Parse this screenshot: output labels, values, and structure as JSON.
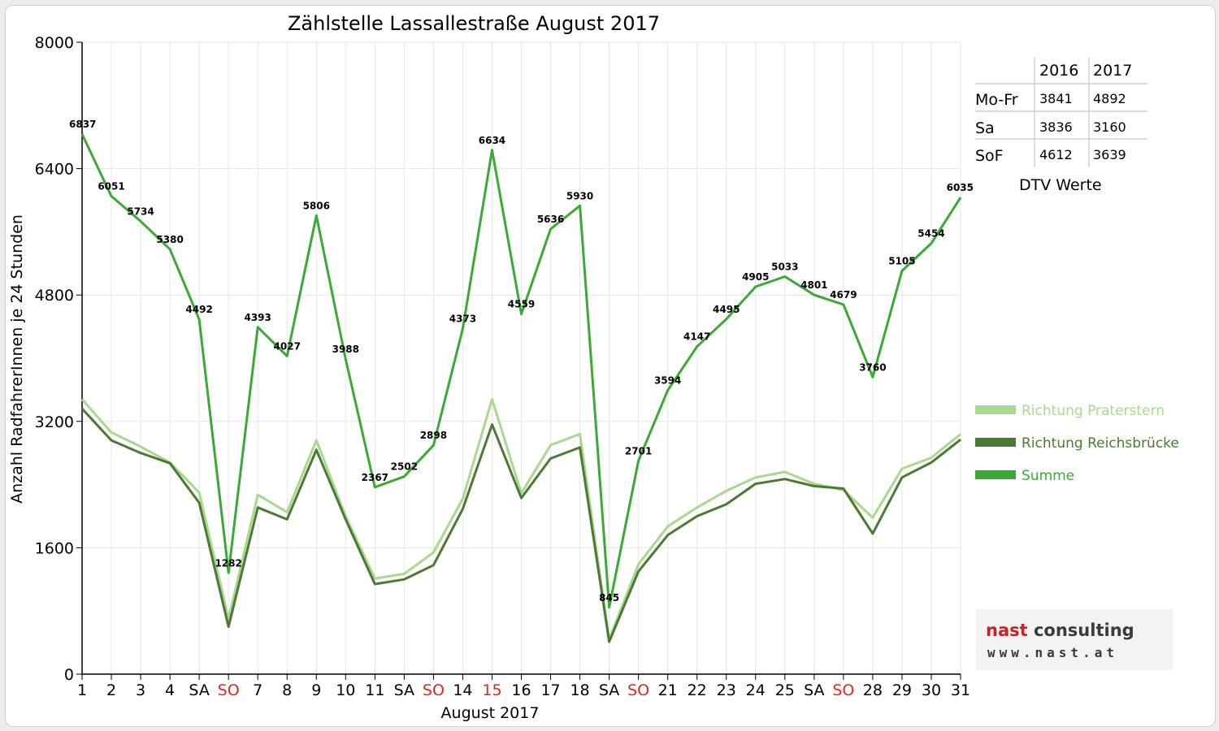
{
  "chart_data": {
    "type": "line",
    "title": "Zählstelle Lassallestraße August 2017",
    "xlabel": "August 2017",
    "ylabel": "Anzahl RadfahrerInnen je 24 Stunden",
    "ylim": [
      0,
      8000
    ],
    "yticks": [
      0,
      1600,
      3200,
      4800,
      6400,
      8000
    ],
    "grid": true,
    "legend_position": "right",
    "x": [
      1,
      2,
      3,
      4,
      5,
      6,
      7,
      8,
      9,
      10,
      11,
      12,
      13,
      14,
      15,
      16,
      17,
      18,
      19,
      20,
      21,
      22,
      23,
      24,
      25,
      26,
      27,
      28,
      29,
      30,
      31
    ],
    "tick_labels": [
      "1",
      "2",
      "3",
      "4",
      "SA",
      "SO",
      "7",
      "8",
      "9",
      "10",
      "11",
      "SA",
      "SO",
      "14",
      "15",
      "16",
      "17",
      "18",
      "SA",
      "SO",
      "21",
      "22",
      "23",
      "24",
      "25",
      "SA",
      "SO",
      "28",
      "29",
      "30",
      "31"
    ],
    "highlight_ticks": [
      "SO",
      "15"
    ],
    "highlight_color": "#e8231c",
    "series": [
      {
        "name": "Richtung Praterstern",
        "color": "#a8d98e",
        "values": [
          3480,
          3060,
          2880,
          2680,
          2300,
          700,
          2270,
          2050,
          2960,
          2000,
          1210,
          1270,
          1540,
          2220,
          3480,
          2290,
          2900,
          3040,
          440,
          1390,
          1870,
          2110,
          2320,
          2490,
          2560,
          2410,
          2330,
          1980,
          2600,
          2740,
          3040
        ]
      },
      {
        "name": "Richtung Reichsbrücke",
        "color": "#4a7a33",
        "values": [
          3360,
          2960,
          2800,
          2670,
          2170,
          600,
          2110,
          1960,
          2840,
          1960,
          1140,
          1200,
          1380,
          2090,
          3160,
          2230,
          2730,
          2870,
          410,
          1300,
          1760,
          2000,
          2150,
          2410,
          2470,
          2380,
          2350,
          1780,
          2490,
          2680,
          2970
        ]
      },
      {
        "name": "Summe",
        "color": "#3aaa35",
        "values": [
          6837,
          6051,
          5734,
          5380,
          4492,
          1282,
          4393,
          4027,
          5806,
          3988,
          2367,
          2502,
          2898,
          4373,
          6634,
          4559,
          5636,
          5930,
          845,
          2701,
          3594,
          4147,
          4495,
          4905,
          5033,
          4801,
          4679,
          3760,
          5105,
          5454,
          6035
        ]
      }
    ],
    "data_labels": [
      6837,
      6051,
      5734,
      5380,
      4492,
      1282,
      4393,
      4027,
      5806,
      3988,
      2367,
      2502,
      2898,
      4373,
      6634,
      4559,
      5636,
      5930,
      845,
      2701,
      3594,
      4147,
      4495,
      4905,
      5033,
      4801,
      4679,
      3760,
      5105,
      5454,
      6035
    ]
  },
  "dtv_table": {
    "headers": [
      "",
      "2016",
      "2017"
    ],
    "rows": [
      {
        "label": "Mo-Fr",
        "v2016": "3841",
        "v2017": "4892"
      },
      {
        "label": "Sa",
        "v2016": "3836",
        "v2017": "3160"
      },
      {
        "label": "SoF",
        "v2016": "4612",
        "v2017": "3639"
      }
    ],
    "caption": "DTV Werte"
  },
  "logo": {
    "word1": "nast",
    "word2": " consulting",
    "url": "www.nast.at"
  }
}
